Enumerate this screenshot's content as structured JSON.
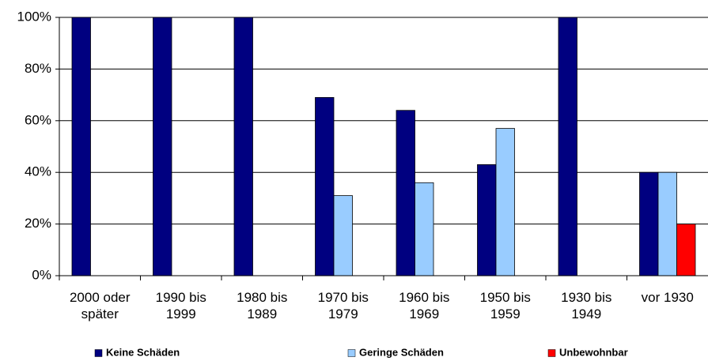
{
  "chart_data": {
    "type": "bar",
    "categories": [
      "2000 oder später",
      "1990 bis 1999",
      "1980 bis 1989",
      "1970 bis 1979",
      "1960 bis 1969",
      "1950 bis 1959",
      "1930 bis 1949",
      "vor 1930"
    ],
    "series": [
      {
        "name": "Keine Schäden",
        "color": "#000080",
        "values": [
          100,
          100,
          100,
          69,
          64,
          43,
          100,
          40
        ]
      },
      {
        "name": "Geringe Schäden",
        "color": "#99ccff",
        "values": [
          0,
          0,
          0,
          31,
          36,
          57,
          0,
          40
        ]
      },
      {
        "name": "Unbewohnbar",
        "color": "#ff0000",
        "values": [
          0,
          0,
          0,
          0,
          0,
          0,
          0,
          20
        ]
      }
    ],
    "ylim": [
      0,
      100
    ],
    "yticks": [
      {
        "value": 0,
        "label": "0%"
      },
      {
        "value": 20,
        "label": "20%"
      },
      {
        "value": 40,
        "label": "40%"
      },
      {
        "value": 60,
        "label": "60%"
      },
      {
        "value": 80,
        "label": "80%"
      },
      {
        "value": 100,
        "label": "100%"
      }
    ],
    "grid": true,
    "legend": "bottom"
  }
}
